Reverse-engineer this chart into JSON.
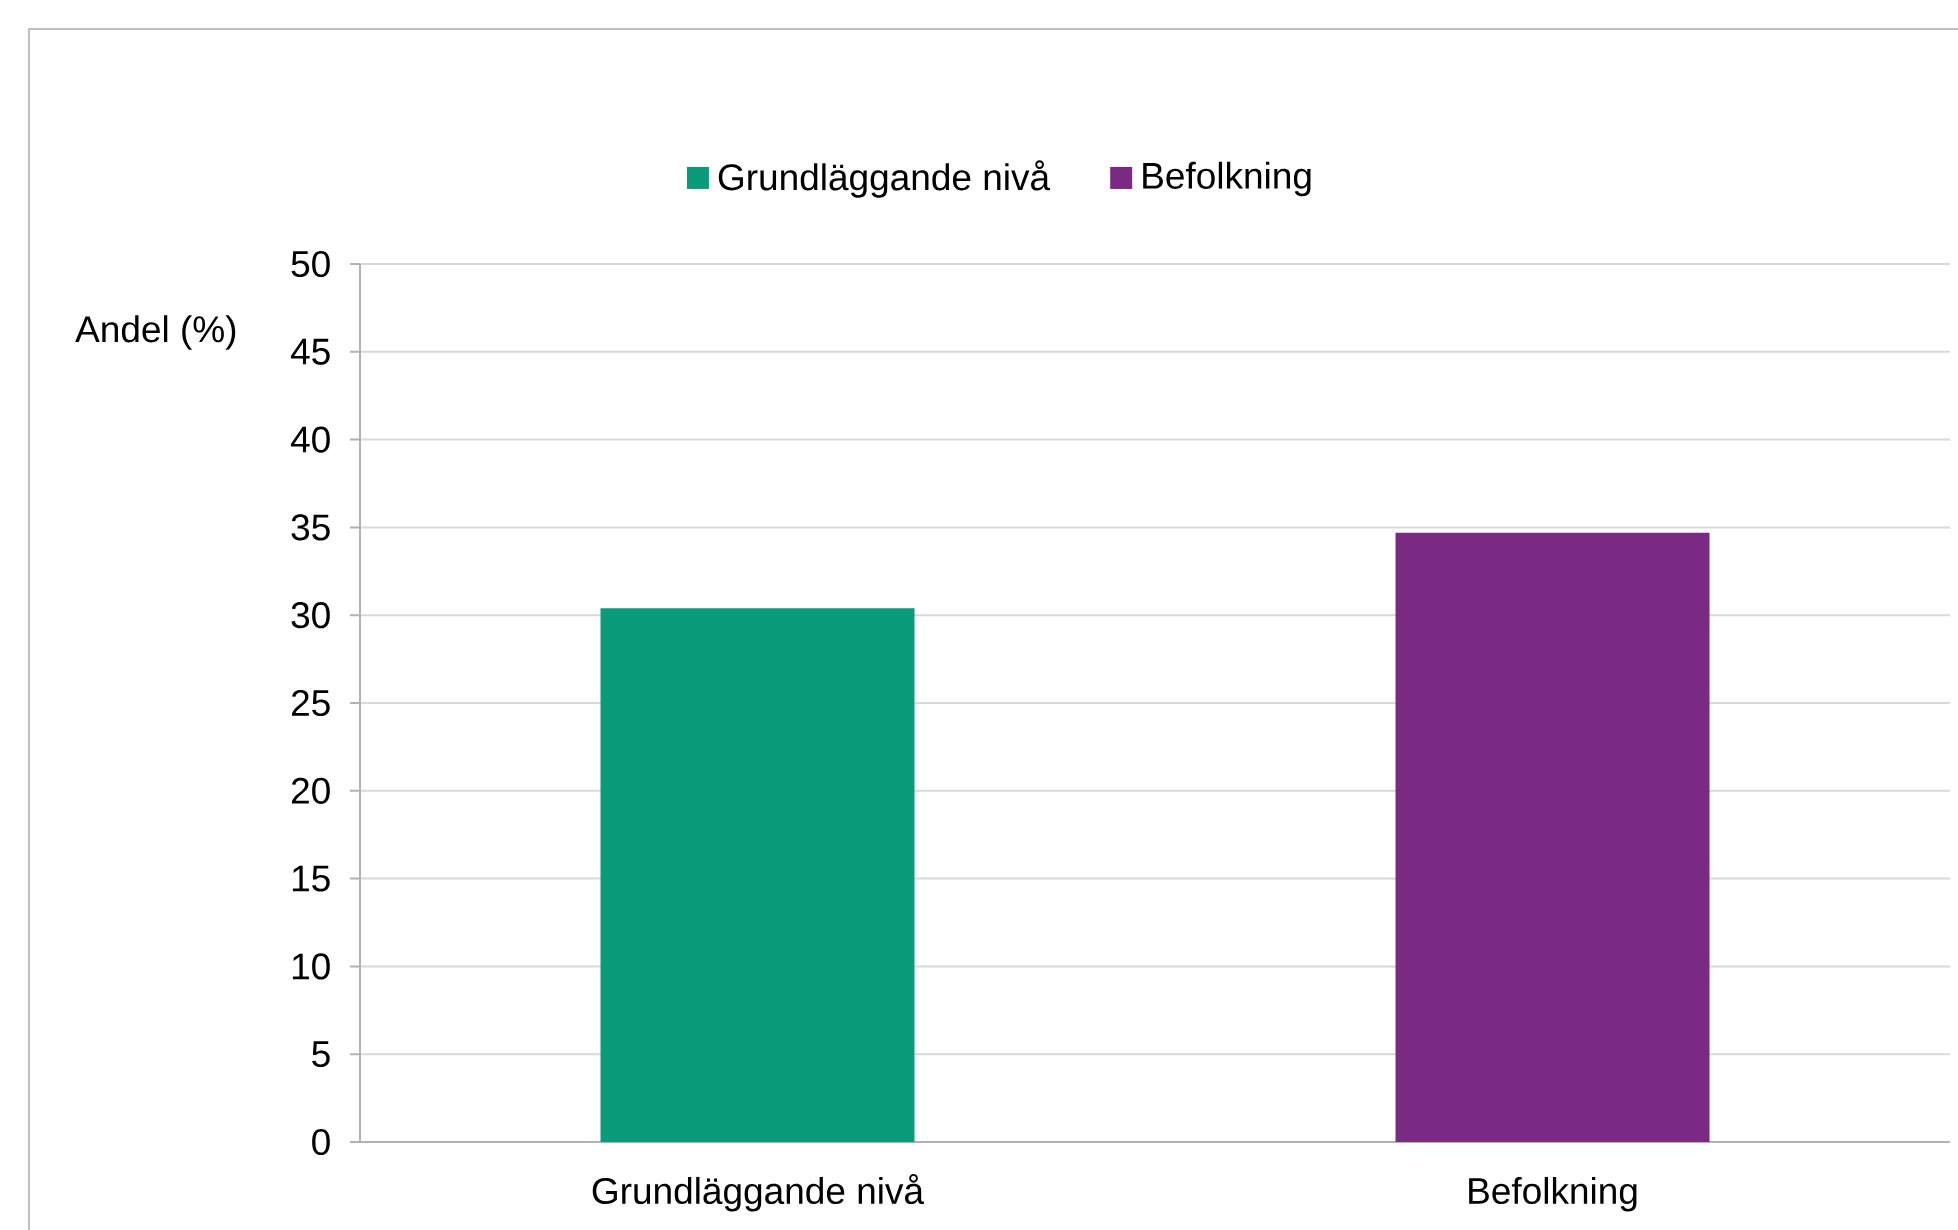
{
  "chart_data": {
    "type": "bar",
    "categories": [
      "Grundläggande nivå",
      "Befolkning"
    ],
    "series": [
      {
        "name": "Grundläggande nivå",
        "color": "#0a9b79",
        "values": [
          30.4,
          null
        ]
      },
      {
        "name": "Befolkning",
        "color": "#7b2a84",
        "values": [
          null,
          34.7
        ]
      }
    ],
    "ylabel": "Andel (%)",
    "ylim": [
      0,
      50
    ],
    "yticks": [
      0,
      5,
      10,
      15,
      20,
      25,
      30,
      35,
      40,
      45,
      50
    ],
    "grid": "y",
    "legend": "top"
  }
}
